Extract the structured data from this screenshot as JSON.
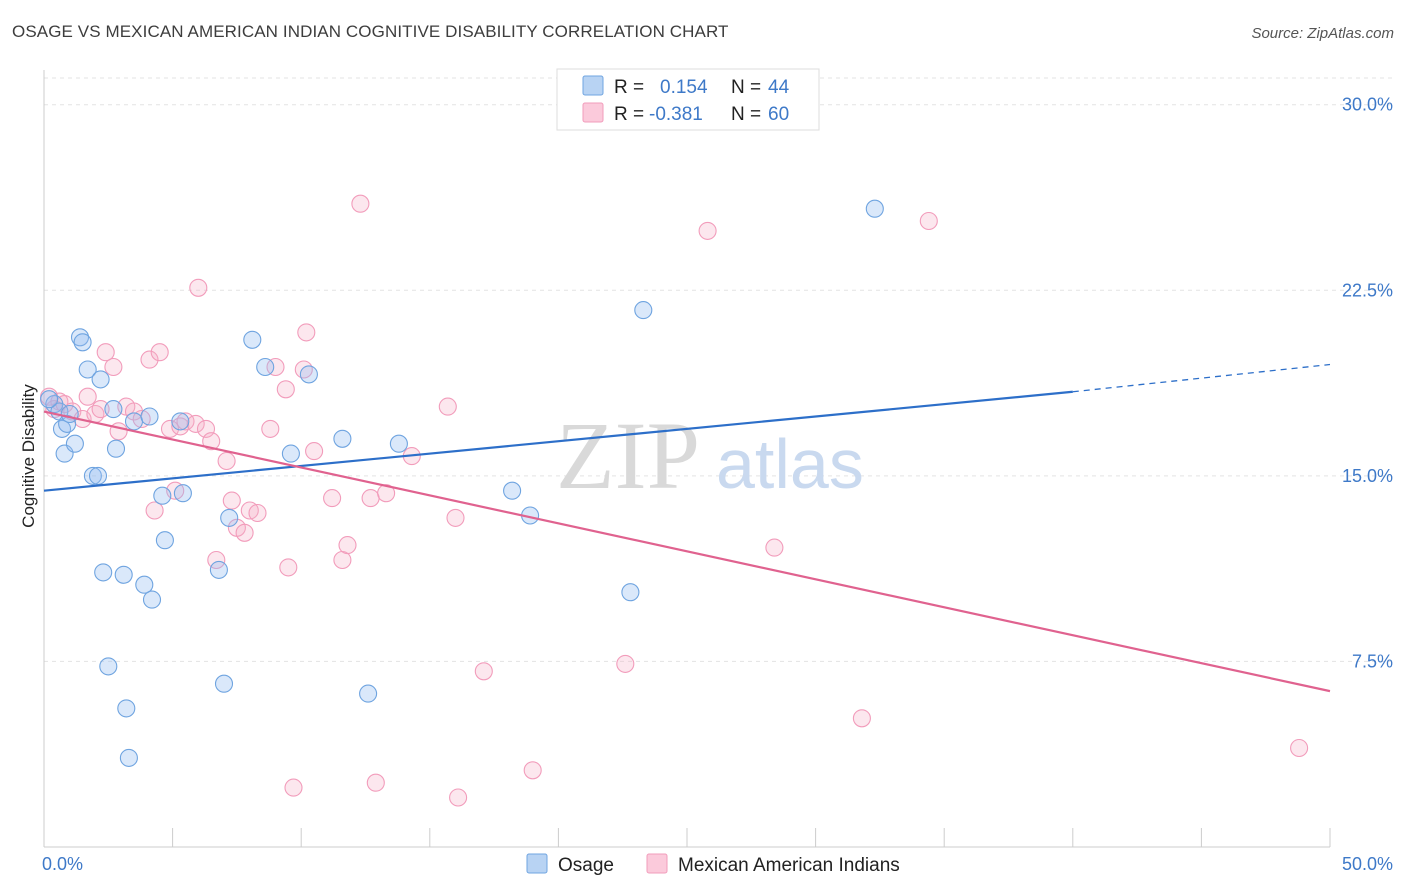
{
  "header": {
    "title": "OSAGE VS MEXICAN AMERICAN INDIAN COGNITIVE DISABILITY CORRELATION CHART",
    "source": "Source: ZipAtlas.com"
  },
  "watermark": {
    "zip": "ZIP",
    "atlas": "atlas"
  },
  "legend": {
    "r_label": "R =",
    "n_label": "N =",
    "rows": [
      {
        "r": "0.154",
        "n": "44"
      },
      {
        "r": "-0.381",
        "n": "60"
      }
    ]
  },
  "chart_data": {
    "type": "scatter",
    "title": "OSAGE VS MEXICAN AMERICAN INDIAN COGNITIVE DISABILITY CORRELATION CHART",
    "xlabel": "",
    "ylabel": "Cognitive Disability",
    "xlim": [
      0,
      50
    ],
    "ylim": [
      0,
      31
    ],
    "x_tick_labels": [
      "0.0%",
      "50.0%"
    ],
    "y_ticks": [
      7.5,
      15.0,
      22.5,
      30.0
    ],
    "y_tick_labels": [
      "7.5%",
      "15.0%",
      "22.5%",
      "30.0%"
    ],
    "grid": true,
    "legend_position": "top-center",
    "series": [
      {
        "name": "Osage",
        "color": "#6fa4e0",
        "trend_color": "#2d6fc9",
        "trend": {
          "x0": 0,
          "y0": 14.4,
          "x1": 40,
          "y1": 18.4,
          "dashed_to_x": 50,
          "dashed_to_y": 19.5
        },
        "points": [
          [
            0.4,
            17.9
          ],
          [
            0.6,
            17.6
          ],
          [
            0.7,
            16.9
          ],
          [
            0.8,
            15.9
          ],
          [
            0.9,
            17.1
          ],
          [
            1.0,
            17.5
          ],
          [
            1.2,
            16.3
          ],
          [
            1.4,
            20.6
          ],
          [
            1.5,
            20.4
          ],
          [
            1.7,
            19.3
          ],
          [
            1.9,
            15.0
          ],
          [
            2.1,
            15.0
          ],
          [
            2.2,
            18.9
          ],
          [
            2.3,
            11.1
          ],
          [
            2.5,
            7.3
          ],
          [
            2.7,
            17.7
          ],
          [
            2.8,
            16.1
          ],
          [
            3.1,
            11.0
          ],
          [
            3.2,
            5.6
          ],
          [
            3.3,
            3.6
          ],
          [
            3.5,
            17.2
          ],
          [
            3.9,
            10.6
          ],
          [
            4.1,
            17.4
          ],
          [
            4.2,
            10.0
          ],
          [
            4.6,
            14.2
          ],
          [
            4.7,
            12.4
          ],
          [
            5.3,
            17.2
          ],
          [
            5.4,
            14.3
          ],
          [
            6.8,
            11.2
          ],
          [
            7.0,
            6.6
          ],
          [
            7.2,
            13.3
          ],
          [
            8.1,
            20.5
          ],
          [
            8.6,
            19.4
          ],
          [
            9.6,
            15.9
          ],
          [
            10.3,
            19.1
          ],
          [
            11.6,
            16.5
          ],
          [
            12.6,
            6.2
          ],
          [
            13.8,
            16.3
          ],
          [
            18.2,
            14.4
          ],
          [
            18.9,
            13.4
          ],
          [
            22.8,
            10.3
          ],
          [
            23.3,
            21.7
          ],
          [
            32.3,
            25.8
          ],
          [
            0.2,
            18.1
          ]
        ]
      },
      {
        "name": "Mexican American Indians",
        "color": "#f29cbb",
        "trend_color": "#e0628f",
        "trend": {
          "x0": 0,
          "y0": 17.6,
          "x1": 50,
          "y1": 6.3
        },
        "points": [
          [
            0.2,
            18.2
          ],
          [
            0.4,
            17.7
          ],
          [
            0.6,
            18.0
          ],
          [
            0.8,
            17.9
          ],
          [
            1.1,
            17.6
          ],
          [
            1.5,
            17.3
          ],
          [
            1.7,
            18.2
          ],
          [
            2.0,
            17.5
          ],
          [
            2.2,
            17.7
          ],
          [
            2.4,
            20.0
          ],
          [
            2.7,
            19.4
          ],
          [
            2.9,
            16.8
          ],
          [
            3.2,
            17.8
          ],
          [
            3.5,
            17.6
          ],
          [
            3.8,
            17.3
          ],
          [
            4.1,
            19.7
          ],
          [
            4.3,
            13.6
          ],
          [
            4.5,
            20.0
          ],
          [
            4.9,
            16.9
          ],
          [
            5.1,
            14.4
          ],
          [
            5.3,
            17.0
          ],
          [
            5.5,
            17.2
          ],
          [
            5.9,
            17.1
          ],
          [
            6.0,
            22.6
          ],
          [
            6.3,
            16.9
          ],
          [
            6.5,
            16.4
          ],
          [
            6.7,
            11.6
          ],
          [
            7.1,
            15.6
          ],
          [
            7.3,
            14.0
          ],
          [
            7.5,
            12.9
          ],
          [
            7.8,
            12.7
          ],
          [
            8.0,
            13.6
          ],
          [
            8.3,
            13.5
          ],
          [
            8.8,
            16.9
          ],
          [
            9.0,
            19.4
          ],
          [
            9.4,
            18.5
          ],
          [
            9.5,
            11.3
          ],
          [
            9.7,
            2.4
          ],
          [
            10.1,
            19.3
          ],
          [
            10.2,
            20.8
          ],
          [
            10.5,
            16.0
          ],
          [
            11.2,
            14.1
          ],
          [
            11.6,
            11.6
          ],
          [
            11.8,
            12.2
          ],
          [
            12.3,
            26.0
          ],
          [
            12.7,
            14.1
          ],
          [
            12.9,
            2.6
          ],
          [
            13.3,
            14.3
          ],
          [
            14.3,
            15.8
          ],
          [
            15.7,
            17.8
          ],
          [
            16.0,
            13.3
          ],
          [
            16.1,
            2.0
          ],
          [
            17.1,
            7.1
          ],
          [
            19.0,
            3.1
          ],
          [
            22.6,
            7.4
          ],
          [
            25.8,
            24.9
          ],
          [
            28.4,
            12.1
          ],
          [
            31.8,
            5.2
          ],
          [
            34.4,
            25.3
          ],
          [
            48.8,
            4.0
          ]
        ]
      }
    ]
  },
  "bottom_legend": {
    "items": [
      {
        "label": "Osage"
      },
      {
        "label": "Mexican American Indians"
      }
    ]
  }
}
